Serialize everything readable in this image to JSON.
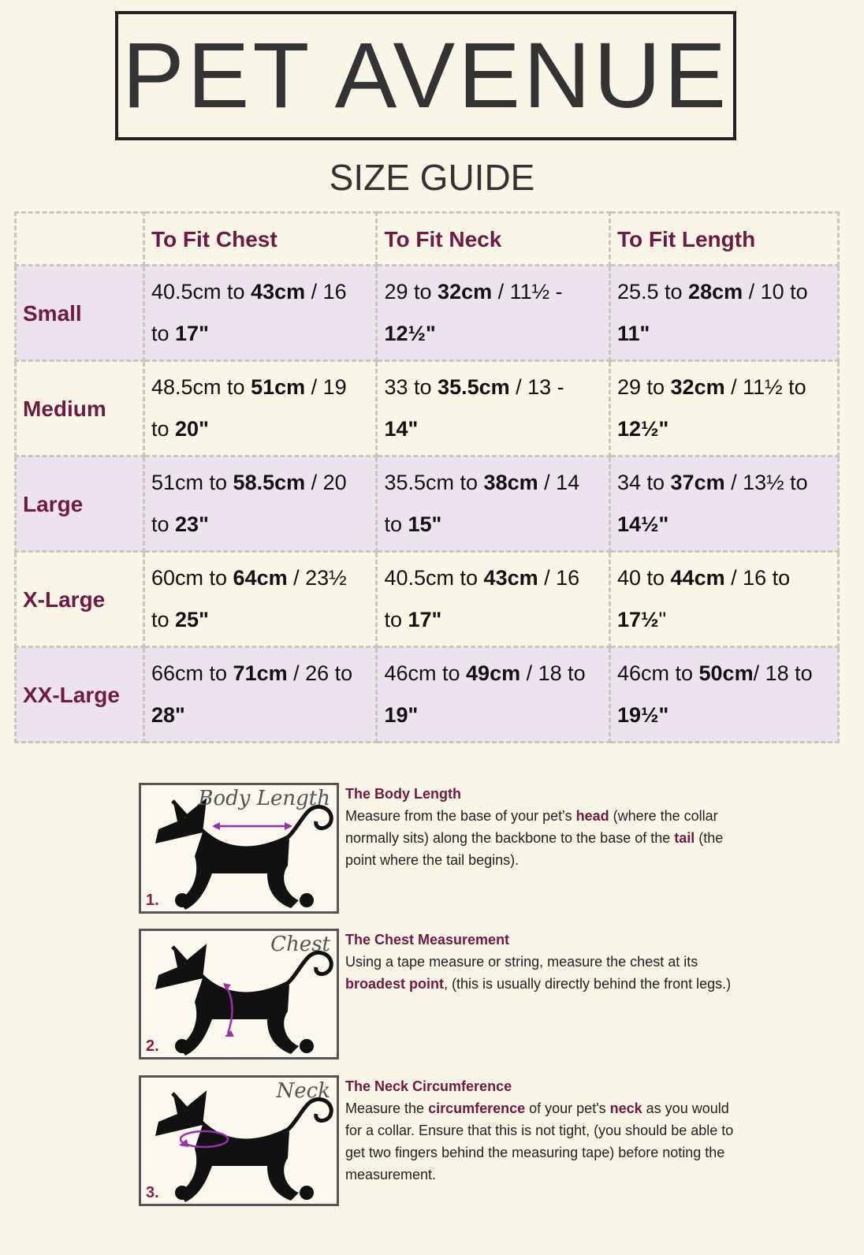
{
  "brand": "PET AVENUE",
  "subtitle": "SIZE GUIDE",
  "colors": {
    "accent": "#6e1a44",
    "row_alt": "#ede3ef",
    "background": "#f9f6e8",
    "arrow": "#9b2fae"
  },
  "table": {
    "headers": [
      "",
      "To Fit Chest",
      "To Fit Neck",
      "To Fit Length"
    ],
    "rows": [
      {
        "size": "Small",
        "cells": [
          [
            [
              "40.5cm to ",
              0
            ],
            [
              "43cm",
              1
            ],
            [
              " / 16 to ",
              0
            ],
            [
              "17\"",
              1
            ]
          ],
          [
            [
              "29 to ",
              0
            ],
            [
              "32cm",
              1
            ],
            [
              " / 11½ - ",
              0
            ],
            [
              "12½\"",
              1
            ]
          ],
          [
            [
              "25.5 to ",
              0
            ],
            [
              "28cm",
              1
            ],
            [
              " / 10 to ",
              0
            ],
            [
              "11\"",
              1
            ]
          ]
        ]
      },
      {
        "size": "Medium",
        "cells": [
          [
            [
              "48.5cm to ",
              0
            ],
            [
              "51cm",
              1
            ],
            [
              " / 19 to ",
              0
            ],
            [
              "20\"",
              1
            ]
          ],
          [
            [
              "33 to ",
              0
            ],
            [
              "35.5cm",
              1
            ],
            [
              " / 13 - ",
              0
            ],
            [
              "14\"",
              1
            ]
          ],
          [
            [
              "29 to ",
              0
            ],
            [
              "32cm",
              1
            ],
            [
              " / 11½ to ",
              0
            ],
            [
              "12½\"",
              1
            ]
          ]
        ]
      },
      {
        "size": "Large",
        "cells": [
          [
            [
              "51cm to ",
              0
            ],
            [
              "58.5cm",
              1
            ],
            [
              " / 20 to ",
              0
            ],
            [
              "23\"",
              1
            ]
          ],
          [
            [
              "35.5cm to ",
              0
            ],
            [
              "38cm",
              1
            ],
            [
              " / 14 to ",
              0
            ],
            [
              "15\"",
              1
            ]
          ],
          [
            [
              "34 to ",
              0
            ],
            [
              "37cm",
              1
            ],
            [
              " / 13½ to ",
              0
            ],
            [
              "14½\"",
              1
            ]
          ]
        ]
      },
      {
        "size": "X-Large",
        "cells": [
          [
            [
              "60cm to ",
              0
            ],
            [
              "64cm",
              1
            ],
            [
              " / 23½ to ",
              0
            ],
            [
              "25\"",
              1
            ]
          ],
          [
            [
              "40.5cm to ",
              0
            ],
            [
              "43cm",
              1
            ],
            [
              " / 16 to ",
              0
            ],
            [
              "17\"",
              1
            ]
          ],
          [
            [
              "40 to ",
              0
            ],
            [
              "44cm",
              1
            ],
            [
              " / 16 to ",
              0
            ],
            [
              "17½",
              1
            ],
            [
              "\"",
              0
            ]
          ]
        ]
      },
      {
        "size": "XX-Large",
        "cells": [
          [
            [
              "66cm to ",
              0
            ],
            [
              "71cm",
              1
            ],
            [
              " / 26 to ",
              0
            ],
            [
              "28\"",
              1
            ]
          ],
          [
            [
              "46cm to ",
              0
            ],
            [
              "49cm",
              1
            ],
            [
              " / 18 to ",
              0
            ],
            [
              "19\"",
              1
            ]
          ],
          [
            [
              "46cm to ",
              0
            ],
            [
              "50cm",
              1
            ],
            [
              "/ 18 to ",
              0
            ],
            [
              "19½\"",
              1
            ]
          ]
        ]
      }
    ]
  },
  "measures": [
    {
      "number": "1.",
      "label": "Body Length",
      "title": "The Body Length",
      "body": [
        [
          "Measure from the base of your pet's ",
          0
        ],
        [
          "head",
          1
        ],
        [
          " (where the collar normally sits) along the backbone to the base of the ",
          0
        ],
        [
          "tail",
          1
        ],
        [
          " (the point where the tail begins).",
          0
        ]
      ]
    },
    {
      "number": "2.",
      "label": "Chest",
      "title": "The Chest Measurement",
      "body": [
        [
          "Using a tape measure or string, measure the chest at its ",
          0
        ],
        [
          "broadest point",
          1
        ],
        [
          ", (this is usually directly behind the front legs.)",
          0
        ]
      ]
    },
    {
      "number": "3.",
      "label": "Neck",
      "title": "The Neck Circumference",
      "body": [
        [
          "Measure the ",
          0
        ],
        [
          "circumference",
          1
        ],
        [
          " of your pet's ",
          0
        ],
        [
          "neck",
          1
        ],
        [
          " as you would for a collar. Ensure that this is not tight, (you should be able to get two fingers behind the measuring tape) before noting the measurement.",
          0
        ]
      ]
    }
  ]
}
